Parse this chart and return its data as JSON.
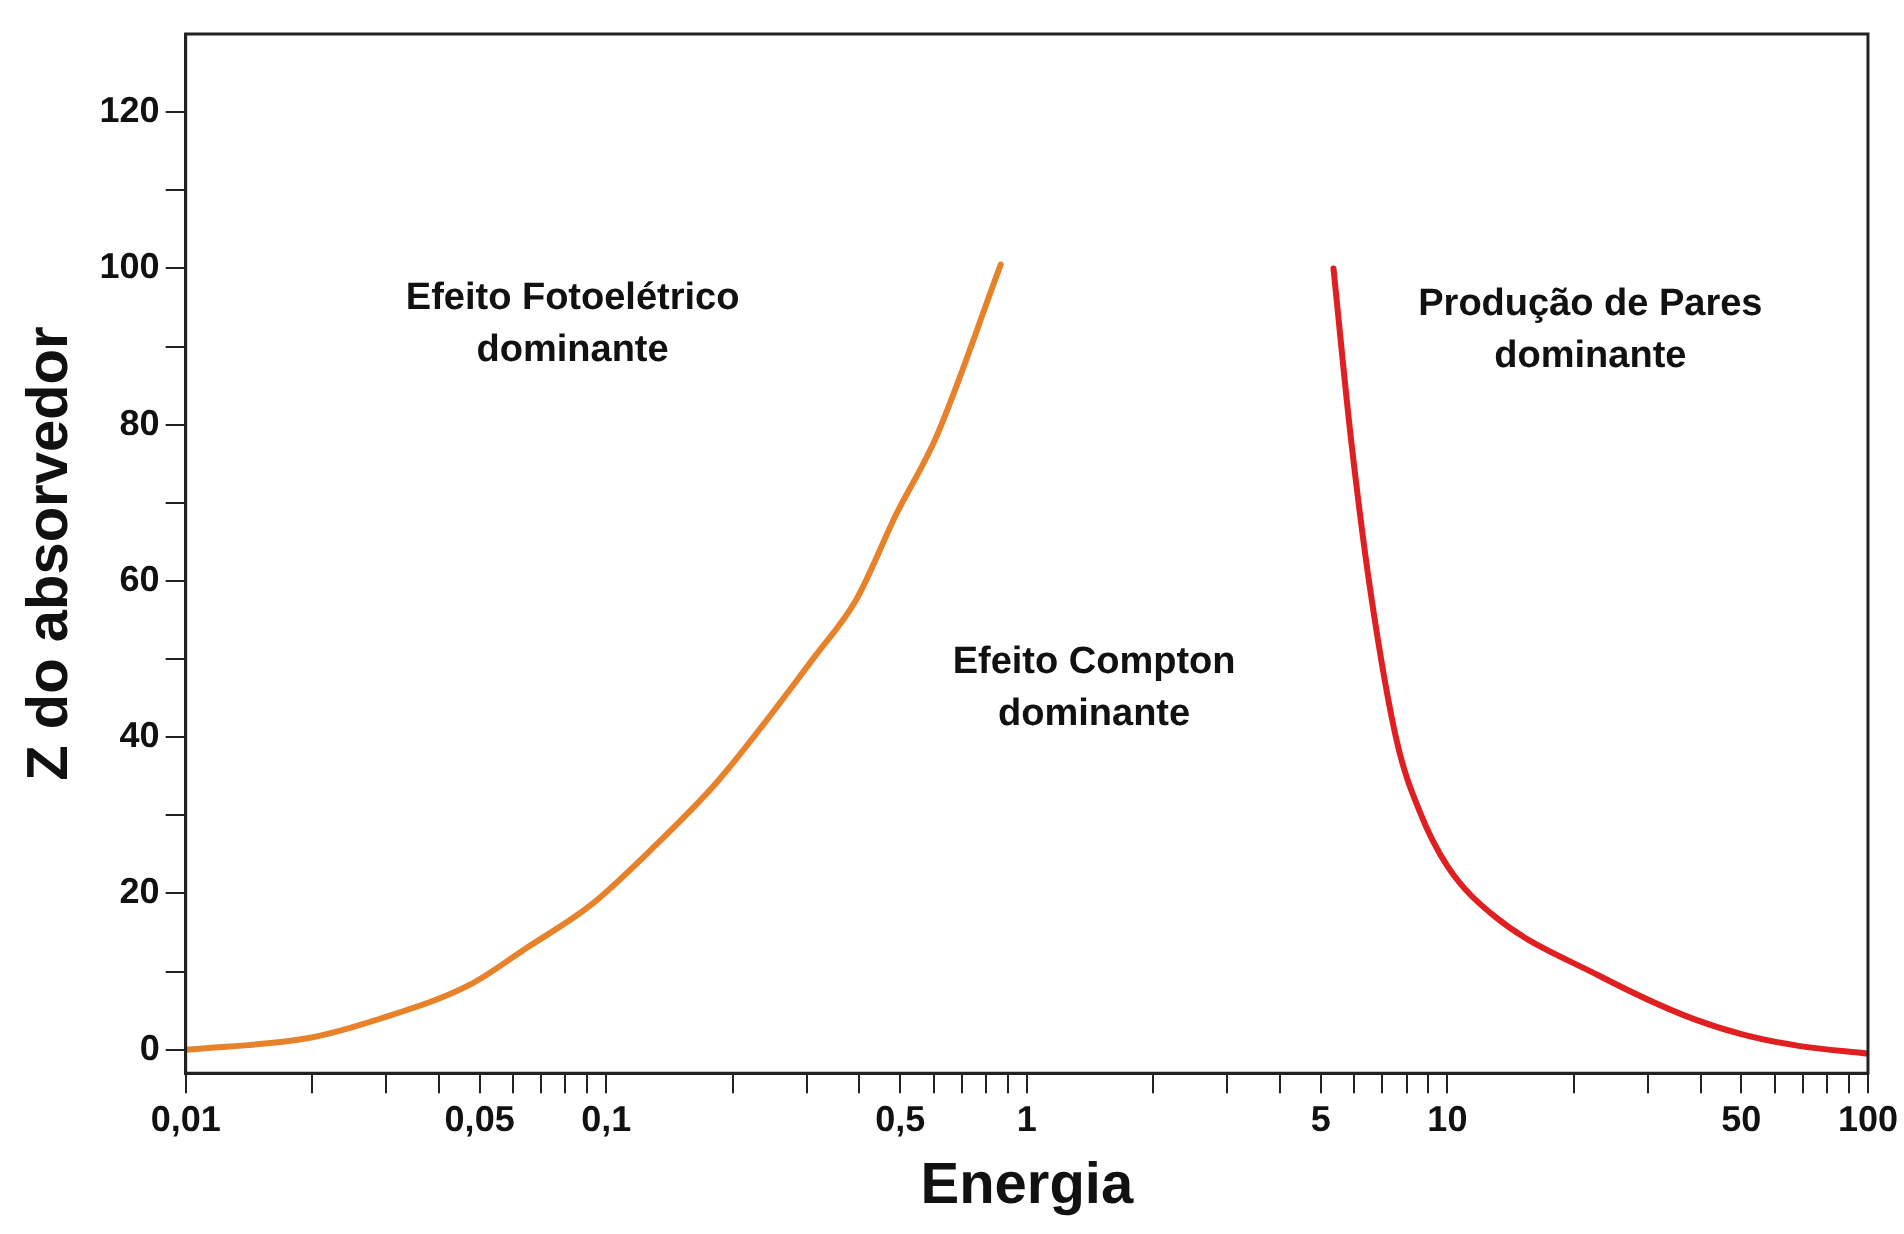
{
  "chart_data": {
    "type": "line",
    "xlabel": "Energia",
    "ylabel": "Z do absorvedor",
    "log": "x",
    "grid": false,
    "legend": false,
    "marker": "none",
    "line_style": "solid",
    "xlim": [
      0.01,
      100
    ],
    "ylim": [
      -3,
      130
    ],
    "xticks": [
      {
        "value": 0.01,
        "label": "0,01"
      },
      {
        "value": 0.02,
        "label": null
      },
      {
        "value": 0.03,
        "label": null
      },
      {
        "value": 0.04,
        "label": null
      },
      {
        "value": 0.05,
        "label": "0,05"
      },
      {
        "value": 0.06,
        "label": null
      },
      {
        "value": 0.07,
        "label": null
      },
      {
        "value": 0.08,
        "label": null
      },
      {
        "value": 0.09,
        "label": null
      },
      {
        "value": 0.1,
        "label": "0,1"
      },
      {
        "value": 0.2,
        "label": null
      },
      {
        "value": 0.3,
        "label": null
      },
      {
        "value": 0.4,
        "label": null
      },
      {
        "value": 0.5,
        "label": "0,5"
      },
      {
        "value": 0.6,
        "label": null
      },
      {
        "value": 0.7,
        "label": null
      },
      {
        "value": 0.8,
        "label": null
      },
      {
        "value": 0.9,
        "label": null
      },
      1,
      {
        "value": 2,
        "label": null
      },
      {
        "value": 3,
        "label": null
      },
      {
        "value": 4,
        "label": null
      },
      5,
      {
        "value": 6,
        "label": null
      },
      {
        "value": 7,
        "label": null
      },
      {
        "value": 8,
        "label": null
      },
      {
        "value": 9,
        "label": null
      },
      10,
      {
        "value": 20,
        "label": null
      },
      {
        "value": 30,
        "label": null
      },
      {
        "value": 40,
        "label": null
      },
      50,
      {
        "value": 60,
        "label": null
      },
      {
        "value": 70,
        "label": null
      },
      {
        "value": 80,
        "label": null
      },
      {
        "value": 90,
        "label": null
      },
      100
    ],
    "yticks": [
      0,
      {
        "value": 10,
        "label": null
      },
      20,
      {
        "value": 30,
        "label": null
      },
      40,
      {
        "value": 50,
        "label": null
      },
      60,
      {
        "value": 70,
        "label": null
      },
      80,
      {
        "value": 90,
        "label": null
      },
      100,
      {
        "value": 110,
        "label": null
      },
      120
    ],
    "series": [
      {
        "color": "#e8822a",
        "x": [
          0.01,
          0.0196,
          0.0291,
          0.0473,
          0.0645,
          0.0918,
          0.13,
          0.185,
          0.315,
          0.392,
          0.489,
          0.61,
          0.867
        ],
        "values": [
          0,
          1.5,
          4,
          8.3,
          13,
          18.5,
          26,
          34.5,
          50.5,
          57.5,
          68.5,
          78.5,
          100.5
        ]
      },
      {
        "color": "#e02020",
        "x": [
          5.36,
          5.89,
          6.57,
          7.58,
          8.59,
          10,
          13,
          22.9,
          36.2,
          50,
          68.4,
          100
        ],
        "values": [
          100,
          78.5,
          58.5,
          39.5,
          30.5,
          23.5,
          17,
          9.5,
          4.5,
          2,
          0.5,
          -0.5
        ]
      }
    ],
    "annotations": [
      "Efeito Fotoelétrico\ndominante",
      "Efeito Compton\ndominante",
      "Produção de Pares\ndominante"
    ]
  }
}
